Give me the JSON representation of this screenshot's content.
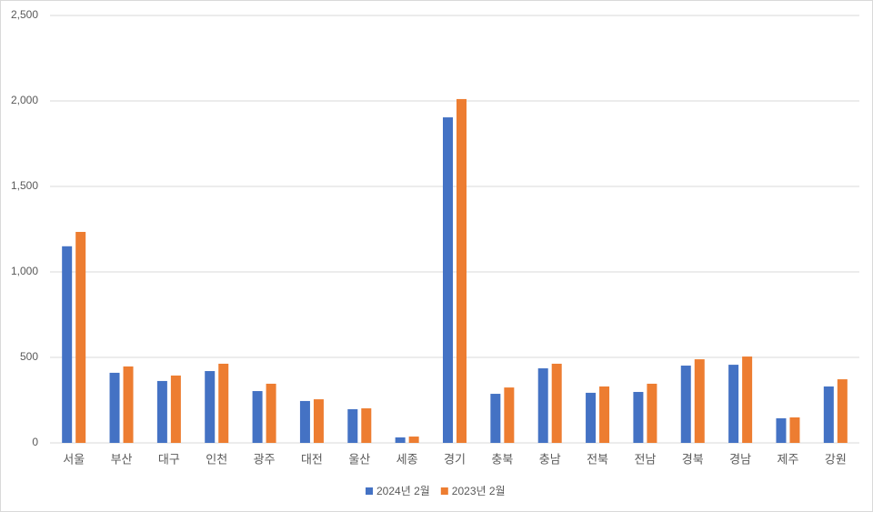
{
  "chart_data": {
    "type": "bar",
    "categories": [
      "서울",
      "부산",
      "대구",
      "인천",
      "광주",
      "대전",
      "울산",
      "세종",
      "경기",
      "충북",
      "충남",
      "전북",
      "전남",
      "경북",
      "경남",
      "제주",
      "강원"
    ],
    "series": [
      {
        "name": "2024년 2월",
        "color": "#4472c4",
        "values": [
          1150,
          410,
          362,
          420,
          303,
          245,
          197,
          32,
          1904,
          287,
          436,
          293,
          298,
          452,
          457,
          144,
          330
        ]
      },
      {
        "name": "2023년 2월",
        "color": "#ed7d31",
        "values": [
          1234,
          447,
          394,
          463,
          346,
          255,
          202,
          37,
          2011,
          324,
          463,
          330,
          346,
          489,
          505,
          149,
          372
        ]
      }
    ],
    "ylim": [
      0,
      2500
    ],
    "yticks": [
      0,
      500,
      {
        "value": 1000,
        "label": "1,000"
      },
      {
        "value": 1500,
        "label": "1,500"
      },
      {
        "value": 2000,
        "label": "2,000"
      },
      {
        "value": 2500,
        "label": "2,500"
      }
    ],
    "grid": true,
    "legend": "bottom"
  }
}
